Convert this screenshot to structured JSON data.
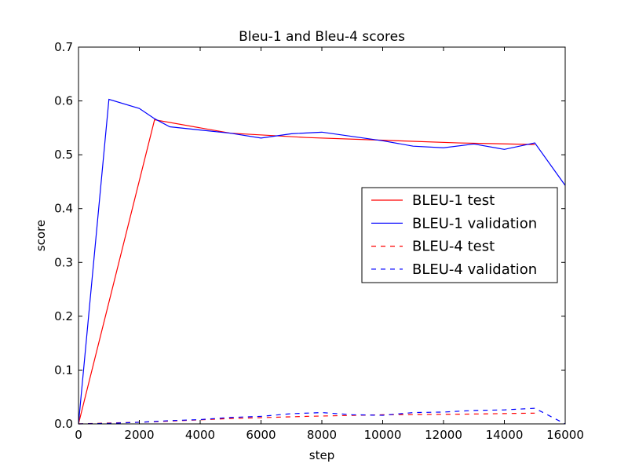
{
  "chart_data": {
    "type": "line",
    "title": "Bleu-1 and Bleu-4 scores",
    "xlabel": "step",
    "ylabel": "score",
    "xlim": [
      0,
      16000
    ],
    "ylim": [
      0,
      0.7
    ],
    "xticks": [
      0,
      2000,
      4000,
      6000,
      8000,
      10000,
      12000,
      14000,
      16000
    ],
    "yticks": [
      0.0,
      0.1,
      0.2,
      0.3,
      0.4,
      0.5,
      0.6,
      0.7
    ],
    "xtick_labels": [
      "0",
      "2000",
      "4000",
      "6000",
      "8000",
      "10000",
      "12000",
      "14000",
      "16000"
    ],
    "ytick_labels": [
      "0.0",
      "0.1",
      "0.2",
      "0.3",
      "0.4",
      "0.5",
      "0.6",
      "0.7"
    ],
    "grid": false,
    "legend_position": "center-right",
    "series": [
      {
        "name": "BLEU-1 test",
        "color": "#ff0000",
        "dash": "solid",
        "x": [
          0,
          2500,
          5000,
          7500,
          10000,
          12500,
          15000
        ],
        "y": [
          0.0,
          0.565,
          0.54,
          0.532,
          0.527,
          0.522,
          0.519
        ]
      },
      {
        "name": "BLEU-1 validation",
        "color": "#0000ff",
        "dash": "solid",
        "x": [
          0,
          1000,
          2000,
          2500,
          3000,
          4000,
          5000,
          6000,
          7000,
          8000,
          9000,
          10000,
          11000,
          12000,
          13000,
          14000,
          15000,
          16000
        ],
        "y": [
          0.0,
          0.603,
          0.586,
          0.567,
          0.552,
          0.546,
          0.54,
          0.531,
          0.539,
          0.542,
          0.534,
          0.526,
          0.516,
          0.513,
          0.52,
          0.51,
          0.522,
          0.443
        ]
      },
      {
        "name": "BLEU-4 test",
        "color": "#ff0000",
        "dash": "dashed",
        "x": [
          0,
          2500,
          5000,
          7500,
          10000,
          12500,
          15000
        ],
        "y": [
          0.0,
          0.004,
          0.01,
          0.014,
          0.017,
          0.018,
          0.02
        ]
      },
      {
        "name": "BLEU-4 validation",
        "color": "#0000ff",
        "dash": "dashed",
        "x": [
          0,
          1000,
          2000,
          3000,
          4000,
          5000,
          6000,
          7000,
          8000,
          9000,
          10000,
          11000,
          12000,
          13000,
          14000,
          15000,
          16000
        ],
        "y": [
          0.0,
          0.001,
          0.003,
          0.006,
          0.008,
          0.012,
          0.014,
          0.019,
          0.021,
          0.017,
          0.016,
          0.021,
          0.022,
          0.025,
          0.026,
          0.029,
          0.0
        ]
      }
    ]
  }
}
